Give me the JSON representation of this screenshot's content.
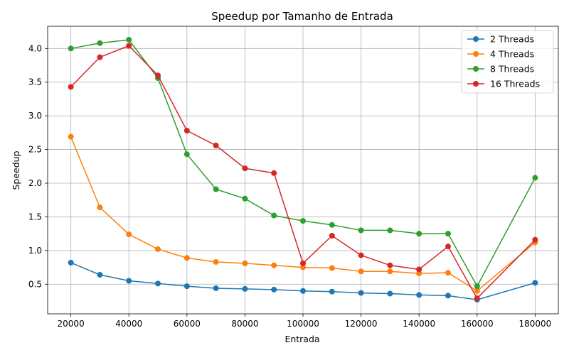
{
  "chart_data": {
    "type": "line",
    "title": "Speedup por Tamanho de Entrada",
    "xlabel": "Entrada",
    "ylabel": "Speedup",
    "x": [
      20000,
      30000,
      40000,
      50000,
      60000,
      70000,
      80000,
      90000,
      100000,
      110000,
      120000,
      130000,
      140000,
      150000,
      160000,
      180000
    ],
    "xlim": [
      12000,
      188000
    ],
    "ylim": [
      0.06,
      4.33
    ],
    "xticks": [
      20000,
      40000,
      60000,
      80000,
      100000,
      120000,
      140000,
      160000,
      180000
    ],
    "yticks": [
      0.5,
      1.0,
      1.5,
      2.0,
      2.5,
      3.0,
      3.5,
      4.0
    ],
    "grid": true,
    "legend_position": "top-right",
    "series": [
      {
        "name": "2 Threads",
        "color": "#1f77b4",
        "values": [
          0.82,
          0.64,
          0.55,
          0.51,
          0.47,
          0.44,
          0.43,
          0.42,
          0.4,
          0.39,
          0.37,
          0.36,
          0.34,
          0.33,
          0.27,
          0.52
        ]
      },
      {
        "name": "4 Threads",
        "color": "#ff7f0e",
        "values": [
          2.69,
          1.64,
          1.24,
          1.02,
          0.89,
          0.83,
          0.81,
          0.78,
          0.75,
          0.74,
          0.69,
          0.69,
          0.66,
          0.67,
          0.4,
          1.12
        ]
      },
      {
        "name": "8 Threads",
        "color": "#2ca02c",
        "values": [
          4.0,
          4.08,
          4.13,
          3.56,
          2.43,
          1.91,
          1.77,
          1.52,
          1.44,
          1.38,
          1.3,
          1.3,
          1.25,
          1.25,
          0.47,
          2.08
        ]
      },
      {
        "name": "16 Threads",
        "color": "#d62728",
        "values": [
          3.43,
          3.87,
          4.04,
          3.6,
          2.78,
          2.56,
          2.22,
          2.15,
          0.81,
          1.22,
          0.93,
          0.78,
          0.72,
          1.06,
          0.29,
          1.16
        ]
      }
    ]
  }
}
